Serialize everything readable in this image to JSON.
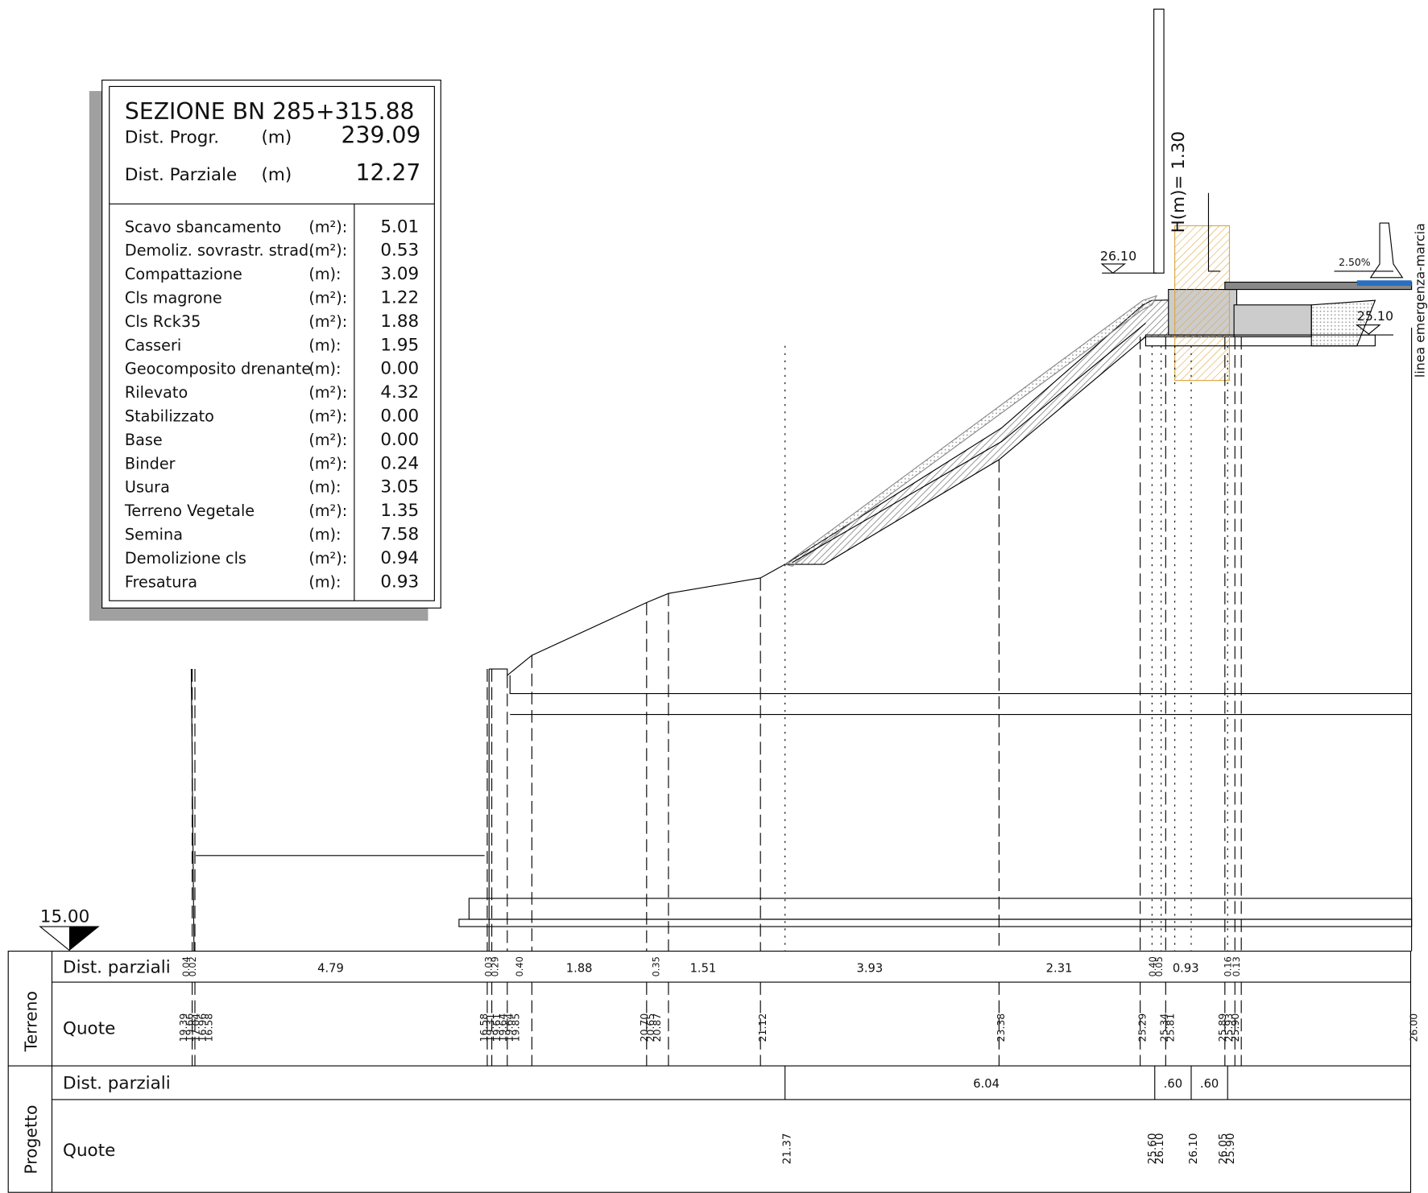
{
  "section": {
    "title": "SEZIONE BN 285+315.88",
    "rows": [
      {
        "label": "Dist. Progr.",
        "unit": "(m)",
        "value": "239.09"
      },
      {
        "label": "Dist. Parziale",
        "unit": "(m)",
        "value": "12.27"
      }
    ]
  },
  "quantities": [
    {
      "label": "Scavo sbancamento",
      "unit": "(m²):",
      "value": "5.01"
    },
    {
      "label": "Demoliz. sovrastr. strad.",
      "unit": "(m²):",
      "value": "0.53"
    },
    {
      "label": "Compattazione",
      "unit": "(m):",
      "value": "3.09"
    },
    {
      "label": "Cls magrone",
      "unit": "(m²):",
      "value": "1.22"
    },
    {
      "label": "Cls Rck35",
      "unit": "(m²):",
      "value": "1.88"
    },
    {
      "label": "Casseri",
      "unit": "(m):",
      "value": "1.95"
    },
    {
      "label": "Geocomposito drenante",
      "unit": "(m):",
      "value": "0.00"
    },
    {
      "label": "Rilevato",
      "unit": "(m²):",
      "value": "4.32"
    },
    {
      "label": "Stabilizzato",
      "unit": "(m²):",
      "value": "0.00"
    },
    {
      "label": "Base",
      "unit": "(m²):",
      "value": "0.00"
    },
    {
      "label": "Binder",
      "unit": "(m²):",
      "value": "0.24"
    },
    {
      "label": "Usura",
      "unit": "(m):",
      "value": "3.05"
    },
    {
      "label": "Terreno Vegetale",
      "unit": "(m²):",
      "value": "1.35"
    },
    {
      "label": "Semina",
      "unit": "(m):",
      "value": "7.58"
    },
    {
      "label": "Demolizione cls",
      "unit": "(m²):",
      "value": "0.94"
    },
    {
      "label": "Fresatura",
      "unit": "(m):",
      "value": "0.93"
    }
  ],
  "annotations": {
    "height": "H(m)= 1.30",
    "level_top": "26.10",
    "level_right": "25.10",
    "slope": "2.50%",
    "lane": "linea emergenza-marcia",
    "datum": "15.00"
  },
  "terreno": {
    "group": "Terreno",
    "dist_label": "Dist. parziali",
    "quote_label": "Quote",
    "distances": [
      "0.04",
      "0.02",
      "4.79",
      "0.03",
      "0.29",
      "0.40",
      "1.88",
      "0.35",
      "1.51",
      "3.93",
      "2.31",
      "0.40",
      "0.05",
      "0.93",
      "0.16",
      "0.13"
    ],
    "quotes": [
      "19.39",
      "19.66",
      "17.04",
      "16.96",
      "16.58",
      "16.58",
      "19.31",
      "19.61",
      "19.64",
      "19.64",
      "19.85",
      "20.70",
      "20.65",
      "20.87",
      "21.12",
      "23.38",
      "25.29",
      "25.34",
      "25.81",
      "25.89",
      "25.93",
      "25.90",
      "26.00"
    ]
  },
  "progetto": {
    "group": "Progetto",
    "dist_label": "Dist. parziali",
    "quote_label": "Quote",
    "distances": [
      "6.04",
      ".60",
      ".60"
    ],
    "quotes": [
      "21.37",
      "25.60",
      "26.10",
      "26.10",
      "26.05",
      "25.90"
    ]
  }
}
